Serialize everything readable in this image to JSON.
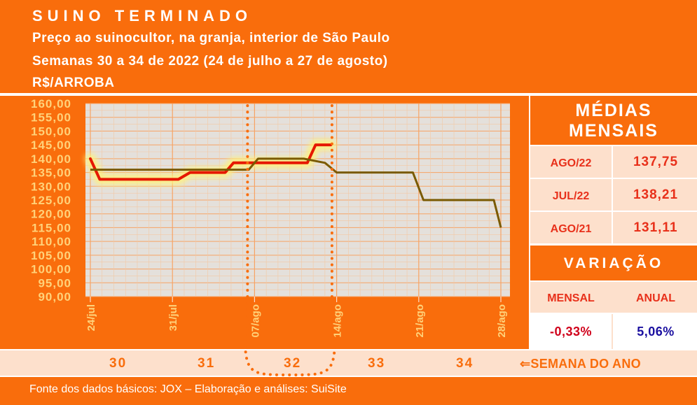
{
  "header": {
    "title": "SUINO TERMINADO",
    "line1": "Preço ao suinocultor, na granja, interior de São Paulo",
    "line2": "Semanas 30 a 34 de 2022 (24 de julho a 27 de agosto)",
    "line3": "R$/ARROBA"
  },
  "chart_data": {
    "type": "line",
    "title": "",
    "xlabel": "",
    "ylabel": "R$/ARROBA",
    "ylim": [
      90,
      160
    ],
    "xlim": [
      0,
      35
    ],
    "yticks": [
      "160,00",
      "155,00",
      "150,00",
      "145,00",
      "140,00",
      "135,00",
      "130,00",
      "125,00",
      "120,00",
      "115,00",
      "110,00",
      "105,00",
      "100,00",
      "95,00",
      "90,00"
    ],
    "x_tick_labels": [
      {
        "label": "24/jul",
        "day": 0
      },
      {
        "label": "31/jul",
        "day": 7
      },
      {
        "label": "07/ago",
        "day": 14
      },
      {
        "label": "14/ago",
        "day": 21
      },
      {
        "label": "21/ago",
        "day": 28
      },
      {
        "label": "28/ago",
        "day": 35
      }
    ],
    "grid": true,
    "series": [
      {
        "color": "#e61800",
        "highlight": true,
        "points": [
          [
            0,
            140
          ],
          [
            0.8,
            132.5
          ],
          [
            7.5,
            132.5
          ],
          [
            8.5,
            135
          ],
          [
            11.5,
            135
          ],
          [
            12.2,
            138.5
          ],
          [
            18.5,
            138.5
          ],
          [
            19.2,
            145
          ],
          [
            20.5,
            145
          ]
        ]
      },
      {
        "color": "#7a5a00",
        "highlight": false,
        "points": [
          [
            0,
            136
          ],
          [
            13.5,
            136
          ],
          [
            14.3,
            140
          ],
          [
            18.2,
            140
          ],
          [
            20,
            138.5
          ],
          [
            21,
            135
          ],
          [
            27.5,
            135
          ],
          [
            28.4,
            125
          ],
          [
            34.4,
            125
          ],
          [
            35,
            115
          ]
        ]
      }
    ],
    "markers": [
      {
        "day": 13.4
      },
      {
        "day": 20.6
      }
    ]
  },
  "medias": {
    "heading_line1": "MÉDIAS",
    "heading_line2": "MENSAIS",
    "rows": [
      {
        "label": "AGO/22",
        "value": "137,75"
      },
      {
        "label": "JUL/22",
        "value": "138,21"
      },
      {
        "label": "AGO/21",
        "value": "131,11"
      }
    ]
  },
  "variacao": {
    "heading": "VARIAÇÃO",
    "mensal_label": "MENSAL",
    "anual_label": "ANUAL",
    "mensal_value": "-0,33%",
    "anual_value": "5,06%",
    "mensal_color": "#d0021b",
    "anual_color": "#1a0fa0"
  },
  "weeks": {
    "numbers": [
      "30",
      "31",
      "32",
      "33",
      "34"
    ],
    "label": "⇐SEMANA DO ANO"
  },
  "footer": {
    "text": "Fonte dos dados básicos: JOX – Elaboração e análises: SuiSite"
  },
  "colors": {
    "brand_orange": "#f96d0c",
    "light_panel": "#fde0cc",
    "value_red": "#e8301a"
  }
}
